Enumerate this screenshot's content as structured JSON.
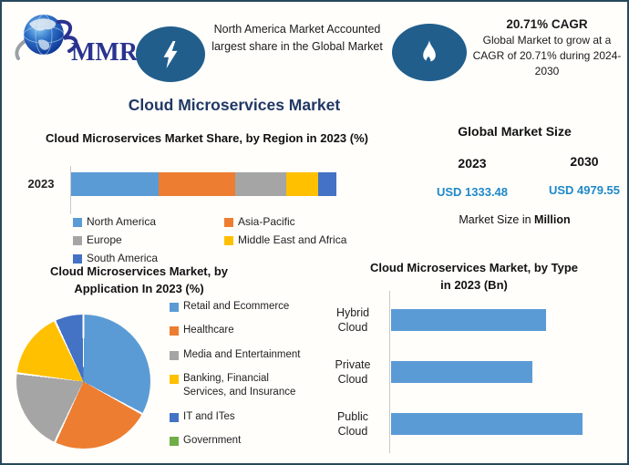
{
  "page_title": "Cloud Microservices Market",
  "header": {
    "logo_text": "MMR",
    "banner_left": "North America Market Accounted largest share in the Global Market",
    "banner_right_title": "20.71% CAGR",
    "banner_right_text": "Global Market to grow at a CAGR of 20.71% during 2024-2030"
  },
  "market_size": {
    "title": "Global Market Size",
    "columns": [
      {
        "year": "2023",
        "value": "USD 1333.48"
      },
      {
        "year": "2030",
        "value": "USD 4979.55"
      }
    ],
    "footnote": {
      "prefix": "Market Size in ",
      "bold": "Million"
    }
  },
  "colors": {
    "border": "#27485C",
    "title_navy": "#203864",
    "badge_navy": "#215E8C",
    "value_blue": "#1F88C8",
    "bar_blue": "#5B9BD5"
  },
  "chart_data": [
    {
      "type": "bar",
      "subtype": "stacked-horizontal",
      "title": "Cloud Microservices Market Share, by Region in 2023 (%)",
      "categories": [
        "2023"
      ],
      "series": [
        {
          "name": "North America",
          "color": "#5B9BD5",
          "values": [
            33
          ]
        },
        {
          "name": "Asia-Pacific",
          "color": "#ED7D31",
          "values": [
            29
          ]
        },
        {
          "name": "Europe",
          "color": "#A5A5A5",
          "values": [
            19
          ]
        },
        {
          "name": "Middle East and Africa",
          "color": "#FFC000",
          "values": [
            12
          ]
        },
        {
          "name": "South America",
          "color": "#4472C4",
          "values": [
            7
          ]
        }
      ],
      "xlim": [
        0,
        100
      ],
      "legend_position": "bottom",
      "note": "segment percentages estimated from bar widths; no data labels shown"
    },
    {
      "type": "pie",
      "title": "Cloud Microservices Market, by Application In 2023 (%)",
      "slices": [
        {
          "label": "Retail and Ecommerce",
          "color": "#5B9BD5",
          "value": 33
        },
        {
          "label": "Healthcare",
          "color": "#ED7D31",
          "value": 24
        },
        {
          "label": "Media and Entertainment",
          "color": "#A5A5A5",
          "value": 20
        },
        {
          "label": "Banking, Financial Services, and Insurance",
          "color": "#FFC000",
          "value": 16
        },
        {
          "label": "IT and ITes",
          "color": "#4472C4",
          "value": 7
        },
        {
          "label": "Government",
          "color": "#70AD47",
          "value": 0
        }
      ],
      "start_angle_deg": 0,
      "legend_position": "right",
      "note": "percentages estimated from slice angles; Government slice too small to be visible"
    },
    {
      "type": "bar",
      "subtype": "horizontal",
      "title": "Cloud Microservices Market, by Type in 2023 (Bn)",
      "categories": [
        "Hybrid Cloud",
        "Private Cloud",
        "Public Cloud"
      ],
      "values": [
        0.81,
        0.74,
        1.0
      ],
      "color": "#5B9BD5",
      "legend_position": "none",
      "note": "axis unlabeled; values are relative bar lengths with Public Cloud = 1.0"
    }
  ]
}
